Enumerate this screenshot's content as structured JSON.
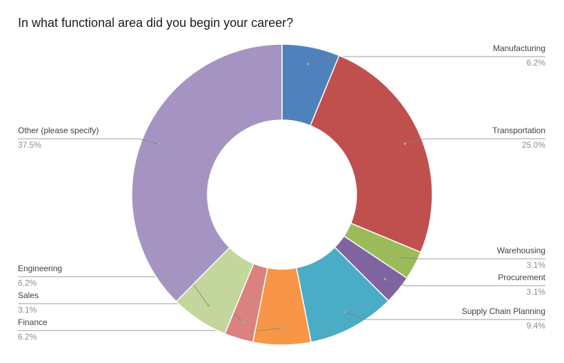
{
  "chart_data": {
    "type": "donut",
    "title": "In what functional area did you begin your career?",
    "categories": [
      "Manufacturing",
      "Transportation",
      "Warehousing",
      "Procurement",
      "Supply Chain Planning",
      "Finance",
      "Sales",
      "Engineering",
      "Other (please specify)"
    ],
    "values": [
      6.2,
      25.0,
      3.1,
      3.1,
      9.4,
      6.2,
      3.1,
      6.2,
      37.5
    ],
    "value_labels": [
      "6.2%",
      "25.0%",
      "3.1%",
      "3.1%",
      "9.4%",
      "6.2%",
      "3.1%",
      "6.2%",
      "37.5%"
    ],
    "colors": [
      "#4f81bd",
      "#c0504d",
      "#9bbb59",
      "#8064a2",
      "#4bacc6",
      "#f79646",
      "#d9827f",
      "#c3d69b",
      "#a594c1"
    ]
  }
}
